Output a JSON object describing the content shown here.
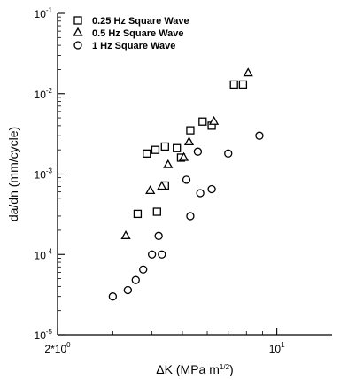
{
  "chart_data": {
    "type": "scatter",
    "xlabel": "ΔK (MPa m1/2)",
    "ylabel": "da/dn (mm/cycle)",
    "x_scale": "log",
    "y_scale": "log",
    "xlim": [
      2,
      15
    ],
    "ylim": [
      1e-05,
      0.1
    ],
    "grid": false,
    "legend_position": "top-left",
    "x_ticks": [
      {
        "value": 2,
        "base": "2*10",
        "exp": "0"
      },
      {
        "value": 10,
        "base": "10",
        "exp": "1"
      }
    ],
    "y_ticks": [
      {
        "value": 0.1,
        "base": "10",
        "exp": "-1"
      },
      {
        "value": 0.01,
        "base": "10",
        "exp": "-2"
      },
      {
        "value": 0.001,
        "base": "10",
        "exp": "-3"
      },
      {
        "value": 0.0001,
        "base": "10",
        "exp": "-4"
      },
      {
        "value": 1e-05,
        "base": "10",
        "exp": "-5"
      }
    ],
    "series": [
      {
        "name": "0.25 Hz Square Wave",
        "marker": "square",
        "points": [
          {
            "x": 3.6,
            "y": 0.00032
          },
          {
            "x": 3.85,
            "y": 0.0018
          },
          {
            "x": 4.1,
            "y": 0.002
          },
          {
            "x": 4.15,
            "y": 0.00034
          },
          {
            "x": 4.4,
            "y": 0.0022
          },
          {
            "x": 4.4,
            "y": 0.00072
          },
          {
            "x": 4.8,
            "y": 0.0021
          },
          {
            "x": 4.95,
            "y": 0.0016
          },
          {
            "x": 5.3,
            "y": 0.0035
          },
          {
            "x": 5.8,
            "y": 0.0045
          },
          {
            "x": 6.2,
            "y": 0.004
          },
          {
            "x": 7.3,
            "y": 0.013
          },
          {
            "x": 7.8,
            "y": 0.013
          }
        ]
      },
      {
        "name": "0.5 Hz Square Wave",
        "marker": "triangle",
        "points": [
          {
            "x": 3.3,
            "y": 0.00017
          },
          {
            "x": 3.95,
            "y": 0.00062
          },
          {
            "x": 4.3,
            "y": 0.0007
          },
          {
            "x": 4.5,
            "y": 0.0013
          },
          {
            "x": 5.05,
            "y": 0.0016
          },
          {
            "x": 5.25,
            "y": 0.0025
          },
          {
            "x": 6.3,
            "y": 0.0045
          },
          {
            "x": 8.1,
            "y": 0.018
          }
        ]
      },
      {
        "name": "1 Hz Square Wave",
        "marker": "circle",
        "points": [
          {
            "x": 3.0,
            "y": 3e-05
          },
          {
            "x": 3.35,
            "y": 3.6e-05
          },
          {
            "x": 3.55,
            "y": 4.8e-05
          },
          {
            "x": 3.75,
            "y": 6.5e-05
          },
          {
            "x": 4.0,
            "y": 0.0001
          },
          {
            "x": 4.2,
            "y": 0.00017
          },
          {
            "x": 4.3,
            "y": 0.0001
          },
          {
            "x": 5.15,
            "y": 0.00085
          },
          {
            "x": 5.3,
            "y": 0.0003
          },
          {
            "x": 5.6,
            "y": 0.0019
          },
          {
            "x": 5.7,
            "y": 0.00058
          },
          {
            "x": 6.2,
            "y": 0.00065
          },
          {
            "x": 7.0,
            "y": 0.0018
          },
          {
            "x": 8.8,
            "y": 0.003
          }
        ]
      }
    ]
  }
}
